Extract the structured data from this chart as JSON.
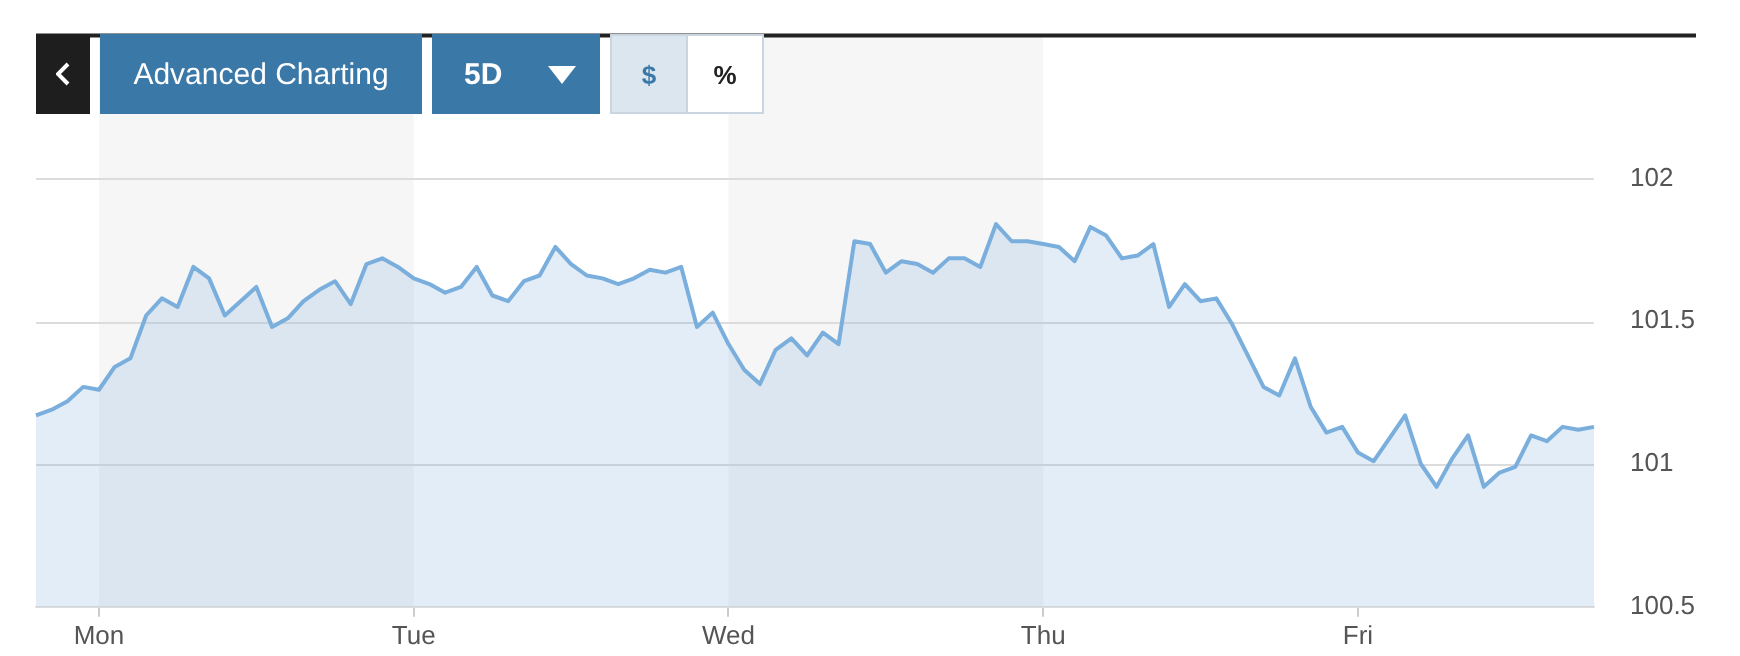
{
  "chart_data": {
    "type": "area",
    "annotations": [
      "Advanced Charting",
      "5D",
      "$",
      "%"
    ],
    "categories": [
      null,
      null,
      null,
      null,
      "Mon",
      null,
      null,
      null,
      null,
      null,
      null,
      null,
      null,
      null,
      null,
      null,
      null,
      null,
      null,
      null,
      null,
      null,
      null,
      null,
      "Tue",
      null,
      null,
      null,
      null,
      null,
      null,
      null,
      null,
      null,
      null,
      null,
      null,
      null,
      null,
      null,
      null,
      null,
      null,
      null,
      "Wed",
      null,
      null,
      null,
      null,
      null,
      null,
      null,
      null,
      null,
      null,
      null,
      null,
      null,
      null,
      null,
      null,
      null,
      null,
      null,
      "Thu",
      null,
      null,
      null,
      null,
      null,
      null,
      null,
      null,
      null,
      null,
      null,
      null,
      null,
      null,
      null,
      null,
      null,
      null,
      null,
      "Fri",
      null,
      null,
      null,
      null,
      null,
      null,
      null,
      null,
      null,
      null,
      null,
      null,
      null,
      null,
      null
    ],
    "series": [
      {
        "color": "#7aaedc",
        "values": [
          101.17,
          101.19,
          101.22,
          101.27,
          101.26,
          101.34,
          101.37,
          101.52,
          101.58,
          101.55,
          101.69,
          101.65,
          101.52,
          101.57,
          101.62,
          101.48,
          101.51,
          101.57,
          101.61,
          101.64,
          101.56,
          101.7,
          101.72,
          101.69,
          101.65,
          101.63,
          101.6,
          101.62,
          101.69,
          101.59,
          101.57,
          101.64,
          101.66,
          101.76,
          101.7,
          101.66,
          101.65,
          101.63,
          101.65,
          101.68,
          101.67,
          101.69,
          101.48,
          101.53,
          101.42,
          101.33,
          101.28,
          101.4,
          101.44,
          101.38,
          101.46,
          101.42,
          101.78,
          101.77,
          101.67,
          101.71,
          101.7,
          101.67,
          101.72,
          101.72,
          101.69,
          101.84,
          101.78,
          101.78,
          101.77,
          101.76,
          101.71,
          101.83,
          101.8,
          101.72,
          101.73,
          101.77,
          101.55,
          101.63,
          101.57,
          101.58,
          101.49,
          101.38,
          101.27,
          101.24,
          101.37,
          101.2,
          101.11,
          101.13,
          101.04,
          101.01,
          101.09,
          101.17,
          101.0,
          100.92,
          101.02,
          101.1,
          100.92,
          100.97,
          100.99,
          101.1,
          101.08,
          101.13,
          101.12,
          101.13
        ]
      }
    ],
    "ylim": [
      100.5,
      102.5
    ],
    "yticks": [
      100.5,
      101,
      101.5,
      102,
      {
        "value": 102.5,
        "label": null
      }
    ],
    "bands": [
      {
        "axis": "x",
        "from": "Mon",
        "to": "Tue",
        "color": "#f6f6f6"
      },
      {
        "axis": "x",
        "from": "Wed",
        "to": "Thu",
        "color": "#f6f6f6"
      }
    ],
    "grid": "y",
    "legend": false,
    "marker": "none",
    "line_style": "solid"
  }
}
